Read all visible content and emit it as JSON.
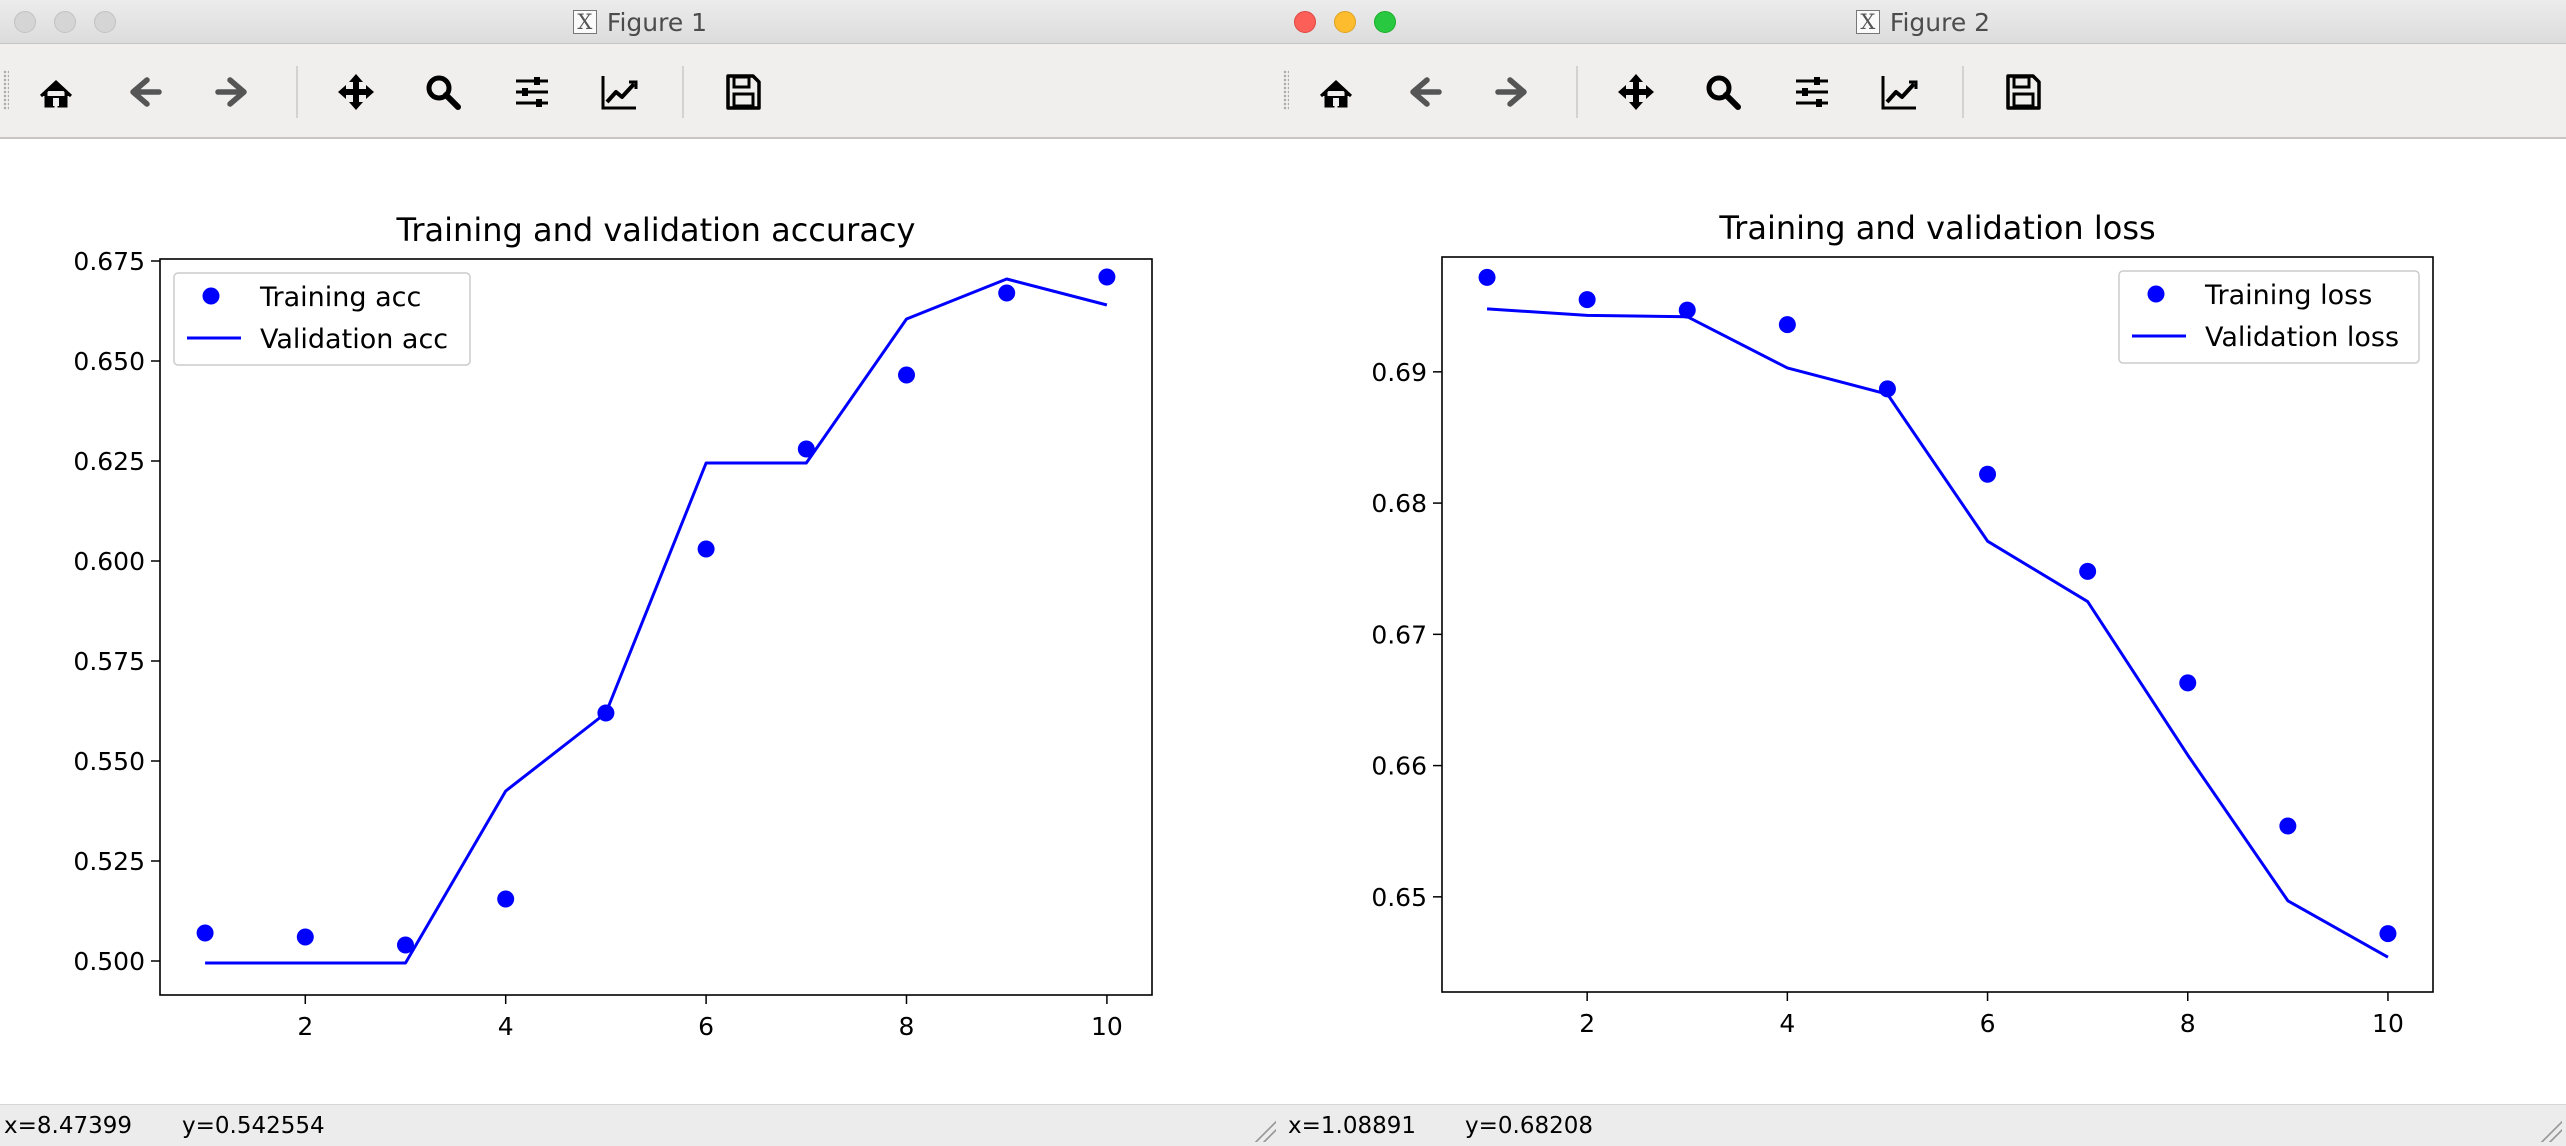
{
  "figure1": {
    "window_title": "Figure 1",
    "status": {
      "x": "x=8.47399",
      "y": "y=0.542554"
    },
    "chart_data": {
      "type": "line",
      "title": "Training and validation accuracy",
      "xlabel": "",
      "ylabel": "",
      "xlim": [
        0.55,
        10.45
      ],
      "ylim": [
        0.4915,
        0.6755
      ],
      "xticks": [
        2,
        4,
        6,
        8,
        10
      ],
      "yticks": [
        0.5,
        0.525,
        0.55,
        0.575,
        0.6,
        0.625,
        0.65,
        0.675
      ],
      "ytick_labels": [
        "0.500",
        "0.525",
        "0.550",
        "0.575",
        "0.600",
        "0.625",
        "0.650",
        "0.675"
      ],
      "legend_position": "top-left",
      "series": [
        {
          "name": "Training acc",
          "style": "points",
          "color": "#0000ff",
          "x": [
            1,
            2,
            3,
            4,
            5,
            6,
            7,
            8,
            9,
            10
          ],
          "y": [
            0.507,
            0.506,
            0.504,
            0.5155,
            0.562,
            0.603,
            0.628,
            0.6465,
            0.667,
            0.671
          ]
        },
        {
          "name": "Validation acc",
          "style": "line",
          "color": "#0000ff",
          "x": [
            1,
            2,
            3,
            4,
            5,
            6,
            7,
            8,
            9,
            10
          ],
          "y": [
            0.4995,
            0.4995,
            0.4995,
            0.5425,
            0.562,
            0.6245,
            0.6245,
            0.6605,
            0.6705,
            0.664
          ]
        }
      ]
    }
  },
  "figure2": {
    "window_title": "Figure 2",
    "status": {
      "x": "x=1.08891",
      "y": "y=0.68208"
    },
    "chart_data": {
      "type": "line",
      "title": "Training and validation loss",
      "xlabel": "",
      "ylabel": "",
      "xlim": [
        0.55,
        10.45
      ],
      "ylim": [
        0.64275,
        0.69875
      ],
      "xticks": [
        2,
        4,
        6,
        8,
        10
      ],
      "yticks": [
        0.65,
        0.66,
        0.67,
        0.68,
        0.69
      ],
      "ytick_labels": [
        "0.65",
        "0.66",
        "0.67",
        "0.68",
        "0.69"
      ],
      "legend_position": "top-right",
      "series": [
        {
          "name": "Training loss",
          "style": "points",
          "color": "#0000ff",
          "x": [
            1,
            2,
            3,
            4,
            5,
            6,
            7,
            8,
            9,
            10
          ],
          "y": [
            0.6972,
            0.6955,
            0.6947,
            0.6936,
            0.6887,
            0.6822,
            0.6748,
            0.6663,
            0.6554,
            0.6472
          ]
        },
        {
          "name": "Validation loss",
          "style": "line",
          "color": "#0000ff",
          "x": [
            1,
            2,
            3,
            4,
            5,
            6,
            7,
            8,
            9,
            10
          ],
          "y": [
            0.6948,
            0.6943,
            0.6942,
            0.6903,
            0.6883,
            0.6771,
            0.6725,
            0.6608,
            0.6497,
            0.6454
          ]
        }
      ]
    }
  },
  "toolbar": {
    "buttons": [
      {
        "name": "home-button",
        "icon": "home-icon"
      },
      {
        "name": "back-button",
        "icon": "arrow-left-icon"
      },
      {
        "name": "forward-button",
        "icon": "arrow-right-icon"
      },
      {
        "name": "pan-button",
        "icon": "move-icon"
      },
      {
        "name": "zoom-button",
        "icon": "magnifier-icon"
      },
      {
        "name": "subplots-button",
        "icon": "sliders-icon"
      },
      {
        "name": "edit-axes-button",
        "icon": "line-chart-icon"
      },
      {
        "name": "save-button",
        "icon": "floppy-disk-icon"
      }
    ]
  }
}
